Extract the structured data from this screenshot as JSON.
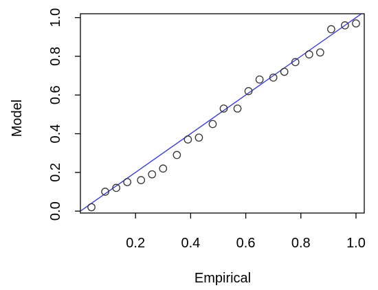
{
  "chart_data": {
    "type": "scatter",
    "xlabel": "Empirical",
    "ylabel": "Model",
    "xlim": [
      0.0,
      1.03
    ],
    "ylim": [
      -0.01,
      1.02
    ],
    "x_ticks": [
      0.2,
      0.4,
      0.6,
      0.8,
      1.0
    ],
    "y_ticks": [
      0.0,
      0.2,
      0.4,
      0.6,
      0.8,
      1.0
    ],
    "x_tick_labels": [
      "0.2",
      "0.4",
      "0.6",
      "0.8",
      "1.0"
    ],
    "y_tick_labels": [
      "0.0",
      "0.2",
      "0.4",
      "0.6",
      "0.8",
      "1.0"
    ],
    "grid": false,
    "marker": "open-circle",
    "reference_line": {
      "from": [
        0.0,
        0.0
      ],
      "to": [
        1.02,
        1.02
      ],
      "color": "#3b3bd6"
    },
    "points": [
      {
        "x": 0.04,
        "y": 0.02
      },
      {
        "x": 0.09,
        "y": 0.1
      },
      {
        "x": 0.13,
        "y": 0.12
      },
      {
        "x": 0.17,
        "y": 0.15
      },
      {
        "x": 0.22,
        "y": 0.16
      },
      {
        "x": 0.26,
        "y": 0.19
      },
      {
        "x": 0.3,
        "y": 0.22
      },
      {
        "x": 0.35,
        "y": 0.29
      },
      {
        "x": 0.39,
        "y": 0.37
      },
      {
        "x": 0.43,
        "y": 0.38
      },
      {
        "x": 0.48,
        "y": 0.45
      },
      {
        "x": 0.52,
        "y": 0.53
      },
      {
        "x": 0.57,
        "y": 0.53
      },
      {
        "x": 0.61,
        "y": 0.62
      },
      {
        "x": 0.65,
        "y": 0.68
      },
      {
        "x": 0.7,
        "y": 0.69
      },
      {
        "x": 0.74,
        "y": 0.72
      },
      {
        "x": 0.78,
        "y": 0.77
      },
      {
        "x": 0.83,
        "y": 0.81
      },
      {
        "x": 0.87,
        "y": 0.82
      },
      {
        "x": 0.91,
        "y": 0.94
      },
      {
        "x": 0.96,
        "y": 0.96
      },
      {
        "x": 1.0,
        "y": 0.97
      }
    ]
  }
}
